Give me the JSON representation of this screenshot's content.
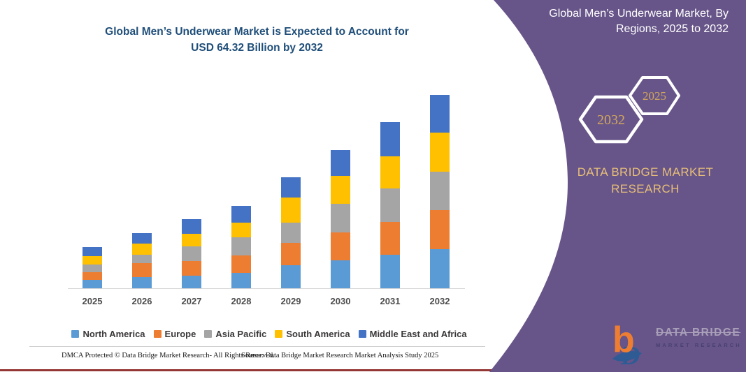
{
  "chart_title": {
    "line1": "Global Men’s Underwear Market is Expected to Account for",
    "line2": "USD 64.32 Billion by 2032"
  },
  "chart_data": {
    "type": "bar",
    "stacked": true,
    "title": "Global Men’s Underwear Market is Expected to Account for USD 64.32 Billion by 2032",
    "unit": "USD Billion",
    "categories": [
      "2025",
      "2026",
      "2027",
      "2028",
      "2029",
      "2030",
      "2031",
      "2032"
    ],
    "series": [
      {
        "name": "North America",
        "color": "#5B9BD5",
        "values": [
          2.7,
          3.7,
          4.2,
          5.0,
          7.6,
          9.3,
          11.1,
          13.0
        ]
      },
      {
        "name": "Europe",
        "color": "#ED7D31",
        "values": [
          2.6,
          4.6,
          4.9,
          6.0,
          7.5,
          9.3,
          11.0,
          12.9
        ]
      },
      {
        "name": "Asia Pacific",
        "color": "#A5A5A5",
        "values": [
          2.6,
          2.9,
          4.8,
          5.9,
          6.8,
          9.4,
          11.0,
          12.9
        ]
      },
      {
        "name": "South America",
        "color": "#FFC000",
        "values": [
          2.8,
          3.6,
          4.2,
          4.9,
          8.3,
          9.3,
          10.8,
          12.9
        ]
      },
      {
        "name": "Middle East and Africa",
        "color": "#4472C4",
        "values": [
          3.1,
          3.5,
          4.9,
          5.6,
          6.7,
          8.8,
          11.4,
          12.6
        ]
      }
    ],
    "totals": [
      13.8,
      18.3,
      23.0,
      27.4,
      36.9,
      46.1,
      55.3,
      64.32
    ],
    "ylim": [
      0,
      66
    ],
    "grid": false,
    "legend_position": "bottom"
  },
  "footer": {
    "left": "DMCA Protected © Data Bridge Market Research-  All Rights Reserved.",
    "right": "Source: Data Bridge Market Research  Market Analysis Study 2025"
  },
  "side_panel": {
    "title_line1": "Global Men’s Underwear Market, By",
    "title_line2": "Regions, 2025 to 2032",
    "hexagons": [
      {
        "label": "2032"
      },
      {
        "label": "2025"
      }
    ],
    "brand_line1": "DATA BRIDGE MARKET",
    "brand_line2": "RESEARCH",
    "logo_primary": "DATA BRIDGE",
    "logo_secondary": "MARKET RESEARCH",
    "colors": {
      "panel_purple": "#675589",
      "accent_gold": "#E8BF77",
      "hexagon_year_gold": "#D2A65C",
      "bottom_rule_red": "#943634"
    }
  }
}
